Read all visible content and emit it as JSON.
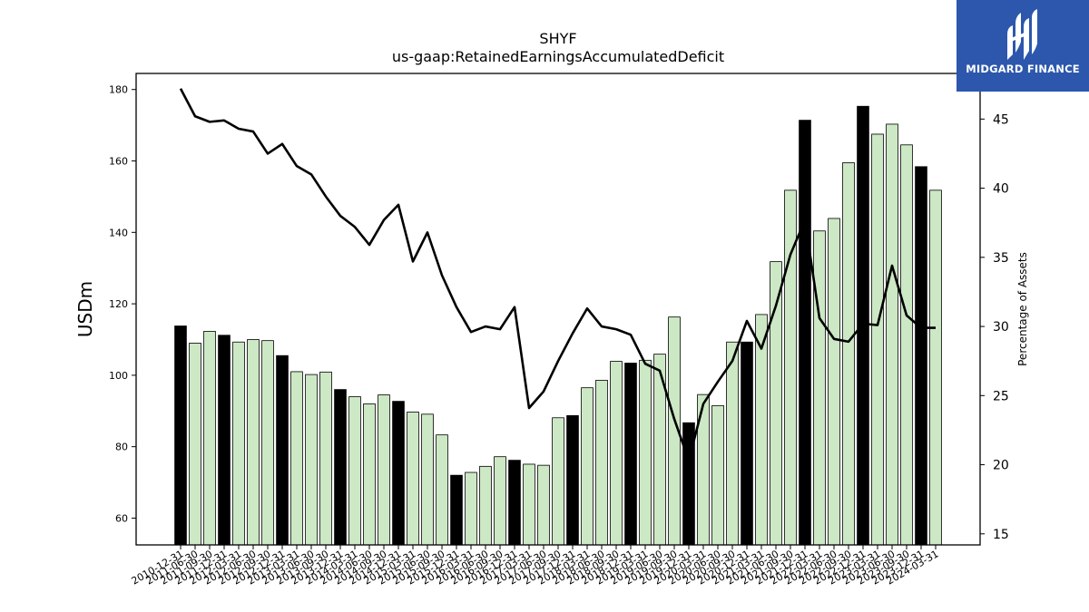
{
  "chart_data": {
    "type": "bar+line",
    "title": "SHYF",
    "subtitle": "us-gaap:RetainedEarningsAccumulatedDeficit",
    "ylabel": "USDm",
    "ylabel_right": "Percentage of Assets",
    "ylim": [
      52.5,
      184.5
    ],
    "ylim_right": [
      14.2,
      48.3
    ],
    "yticks": [
      60,
      80,
      100,
      120,
      140,
      160,
      180
    ],
    "yticks_right": [
      15,
      20,
      25,
      30,
      35,
      40,
      45
    ],
    "categories": [
      "2010-12-31",
      "2011-06-30",
      "2011-09-30",
      "2011-12-31",
      "2012-03-31",
      "2012-06-30",
      "2012-09-30",
      "2012-12-31",
      "2013-03-31",
      "2013-06-30",
      "2013-09-30",
      "2013-12-31",
      "2014-03-31",
      "2014-06-30",
      "2014-09-30",
      "2014-12-31",
      "2015-03-31",
      "2015-06-30",
      "2015-09-30",
      "2015-12-31",
      "2016-03-31",
      "2016-06-30",
      "2016-09-30",
      "2016-12-31",
      "2017-03-31",
      "2017-06-30",
      "2017-09-30",
      "2017-12-31",
      "2018-03-31",
      "2018-06-30",
      "2018-09-30",
      "2018-12-31",
      "2019-03-31",
      "2019-06-30",
      "2019-09-30",
      "2019-12-31",
      "2020-03-31",
      "2020-06-30",
      "2020-09-30",
      "2020-12-31",
      "2021-03-31",
      "2021-06-30",
      "2021-09-30",
      "2021-12-31",
      "2022-03-31",
      "2022-06-30",
      "2022-09-30",
      "2022-12-31",
      "2023-03-31",
      "2023-06-30",
      "2023-09-30",
      "2023-12-31",
      "2024-03-31"
    ],
    "series": [
      {
        "type": "bar",
        "values": [
          113.8,
          109.0,
          112.3,
          111.2,
          109.3,
          110.0,
          109.7,
          105.5,
          101.0,
          100.2,
          100.9,
          96.0,
          94.0,
          92.0,
          94.5,
          92.7,
          89.7,
          89.1,
          83.3,
          72.0,
          72.8,
          74.5,
          77.2,
          76.2,
          75.1,
          74.8,
          88.1,
          88.7,
          96.5,
          98.6,
          103.9,
          103.4,
          104.2,
          105.9,
          116.3,
          86.7,
          94.6,
          91.5,
          109.3,
          109.3,
          117.0,
          131.8,
          151.8,
          171.4,
          140.4,
          143.9,
          159.5,
          175.3,
          167.5,
          170.3,
          164.5,
          158.4,
          151.8
        ],
        "highlight": [
          true,
          false,
          false,
          true,
          false,
          false,
          false,
          true,
          false,
          false,
          false,
          true,
          false,
          false,
          false,
          true,
          false,
          false,
          false,
          true,
          false,
          false,
          false,
          true,
          false,
          false,
          false,
          true,
          false,
          false,
          false,
          true,
          false,
          false,
          false,
          true,
          false,
          false,
          false,
          true,
          false,
          false,
          false,
          true,
          false,
          false,
          false,
          true,
          false,
          false,
          false,
          true,
          false
        ],
        "color": "#cce8c4",
        "highlight_color": "#000000"
      },
      {
        "type": "line",
        "axis": "right",
        "values": [
          47.2,
          45.2,
          44.8,
          44.9,
          44.3,
          44.1,
          42.5,
          43.2,
          41.6,
          41.0,
          39.4,
          38.0,
          37.2,
          35.9,
          37.7,
          38.8,
          34.7,
          36.8,
          33.7,
          31.4,
          29.6,
          30.0,
          29.8,
          31.4,
          24.1,
          25.3,
          27.5,
          29.5,
          31.3,
          30.0,
          29.8,
          29.4,
          27.3,
          26.8,
          23.3,
          20.3,
          24.4,
          26.0,
          27.5,
          30.4,
          28.4,
          31.5,
          35.2,
          37.7,
          30.6,
          29.1,
          28.9,
          30.2,
          30.1,
          34.4,
          30.8,
          29.9,
          29.9
        ],
        "color": "#000000"
      }
    ],
    "grid": false,
    "legend": "none"
  },
  "logo": {
    "text": "MIDGARD FINANCE",
    "background": "#2c57ad",
    "foreground": "#ffffff"
  }
}
